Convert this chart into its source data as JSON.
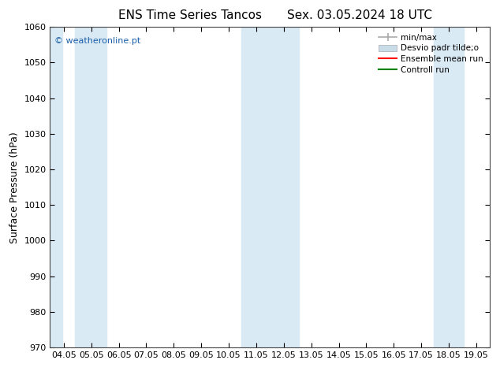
{
  "title_left": "ENS Time Series Tancos",
  "title_right": "Sex. 03.05.2024 18 UTC",
  "ylabel": "Surface Pressure (hPa)",
  "ylim": [
    970,
    1060
  ],
  "yticks": [
    970,
    980,
    990,
    1000,
    1010,
    1020,
    1030,
    1040,
    1050,
    1060
  ],
  "xtick_labels": [
    "04.05",
    "05.05",
    "06.05",
    "07.05",
    "08.05",
    "09.05",
    "10.05",
    "11.05",
    "12.05",
    "13.05",
    "14.05",
    "15.05",
    "16.05",
    "17.05",
    "18.05",
    "19.05"
  ],
  "xlim": [
    0,
    15
  ],
  "shaded_bands": [
    {
      "x_start": 0.0,
      "x_end": 0.45
    },
    {
      "x_start": 0.9,
      "x_end": 2.05
    },
    {
      "x_start": 6.95,
      "x_end": 9.05
    },
    {
      "x_start": 13.95,
      "x_end": 15.05
    }
  ],
  "shade_color": "#daeaf5",
  "background_color": "#ffffff",
  "watermark_text": "© weatheronline.pt",
  "watermark_color": "#1a5fa8",
  "legend_labels": [
    "min/max",
    "Desvio padr tilde;o",
    "Ensemble mean run",
    "Controll run"
  ],
  "legend_colors": [
    "#aaaaaa",
    "#c8dcea",
    "#ff0000",
    "#008000"
  ],
  "title_fontsize": 11,
  "tick_fontsize": 8,
  "ylabel_fontsize": 9
}
